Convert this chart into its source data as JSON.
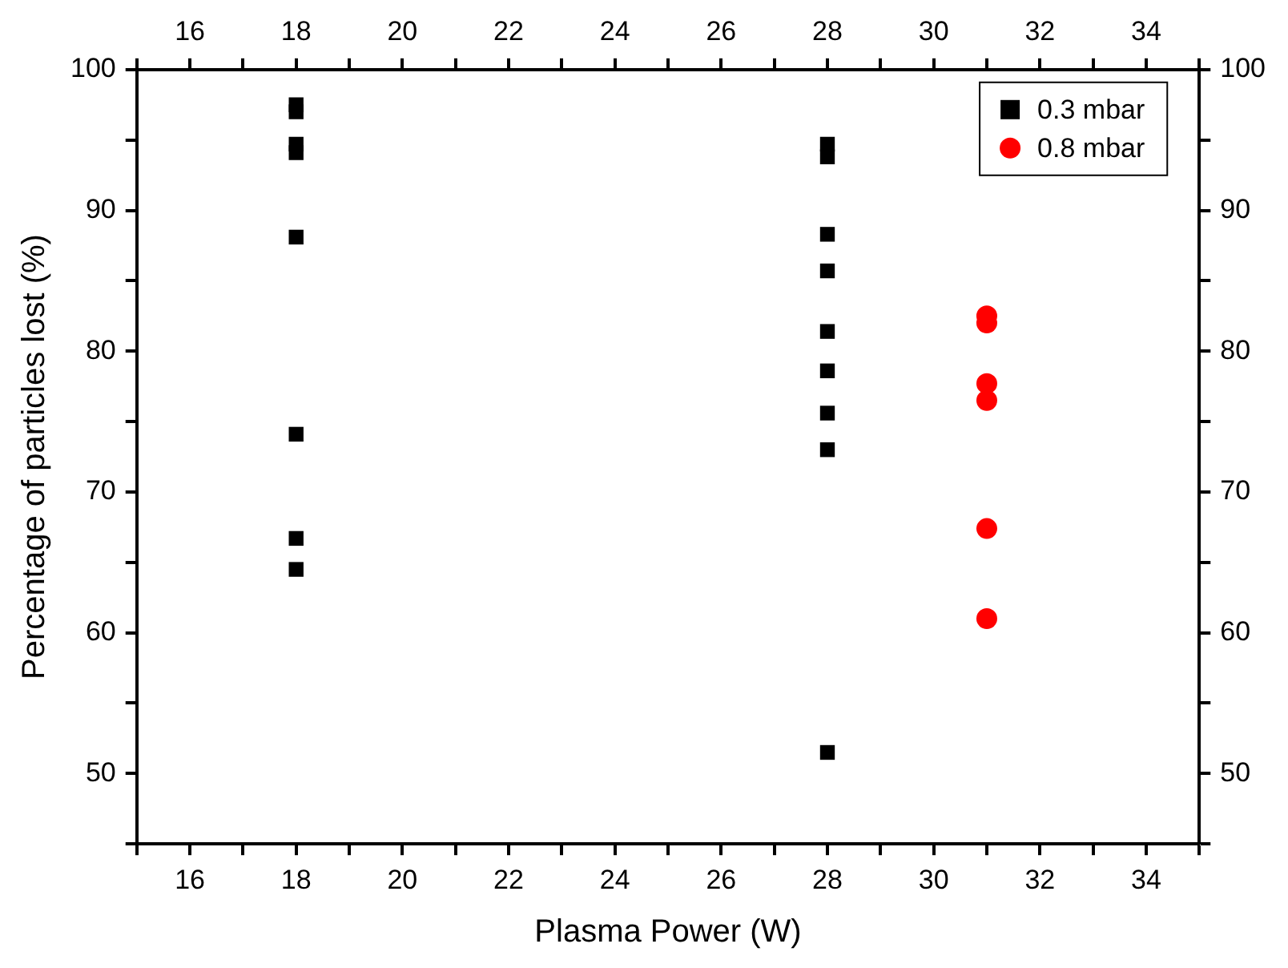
{
  "chart_data": {
    "type": "scatter",
    "xlabel": "Plasma Power (W)",
    "ylabel": "Percentage of particles lost (%)",
    "xlim": [
      15,
      35
    ],
    "xticks": [
      {
        "value": 15,
        "label": null
      },
      16,
      {
        "value": 17,
        "label": null
      },
      18,
      {
        "value": 19,
        "label": null
      },
      20,
      {
        "value": 21,
        "label": null
      },
      22,
      {
        "value": 23,
        "label": null
      },
      24,
      {
        "value": 25,
        "label": null
      },
      26,
      {
        "value": 27,
        "label": null
      },
      28,
      {
        "value": 29,
        "label": null
      },
      30,
      {
        "value": 31,
        "label": null
      },
      32,
      {
        "value": 33,
        "label": null
      },
      34,
      {
        "value": 35,
        "label": null
      }
    ],
    "x2lim": [
      15,
      35
    ],
    "x2ticks": [
      {
        "value": 15,
        "label": null
      },
      16,
      {
        "value": 17,
        "label": null
      },
      18,
      {
        "value": 19,
        "label": null
      },
      20,
      {
        "value": 21,
        "label": null
      },
      22,
      {
        "value": 23,
        "label": null
      },
      24,
      {
        "value": 25,
        "label": null
      },
      26,
      {
        "value": 27,
        "label": null
      },
      28,
      {
        "value": 29,
        "label": null
      },
      30,
      {
        "value": 31,
        "label": null
      },
      32,
      {
        "value": 33,
        "label": null
      },
      34,
      {
        "value": 35,
        "label": null
      }
    ],
    "ylim": [
      45,
      100
    ],
    "yticks": [
      {
        "value": 45,
        "label": null
      },
      50,
      {
        "value": 55,
        "label": null
      },
      60,
      {
        "value": 65,
        "label": null
      },
      70,
      {
        "value": 75,
        "label": null
      },
      80,
      {
        "value": 85,
        "label": null
      },
      90,
      {
        "value": 95,
        "label": null
      },
      100
    ],
    "y2lim": [
      45,
      100
    ],
    "y2ticks": [
      {
        "value": 45,
        "label": null
      },
      50,
      {
        "value": 55,
        "label": null
      },
      60,
      {
        "value": 65,
        "label": null
      },
      70,
      {
        "value": 75,
        "label": null
      },
      80,
      {
        "value": 85,
        "label": null
      },
      90,
      {
        "value": 95,
        "label": null
      },
      100
    ],
    "grid": false,
    "legend": "top right",
    "series": [
      {
        "name": "0.3 mbar",
        "color": "#000000",
        "marker": "square",
        "x": [
          18,
          18,
          18,
          18,
          18,
          18,
          18,
          18,
          28,
          28,
          28,
          28,
          28,
          28,
          28,
          28,
          28
        ],
        "values": [
          97.5,
          97.0,
          94.7,
          94.1,
          88.1,
          74.1,
          66.7,
          64.5,
          94.7,
          93.8,
          88.3,
          85.7,
          81.4,
          78.6,
          75.6,
          73.0,
          51.5
        ]
      },
      {
        "name": "0.8 mbar",
        "color": "#ff0000",
        "marker": "circle",
        "x": [
          31,
          31,
          31,
          31,
          31,
          31
        ],
        "values": [
          82.5,
          82.0,
          77.7,
          76.5,
          67.4,
          61.0
        ]
      }
    ]
  }
}
